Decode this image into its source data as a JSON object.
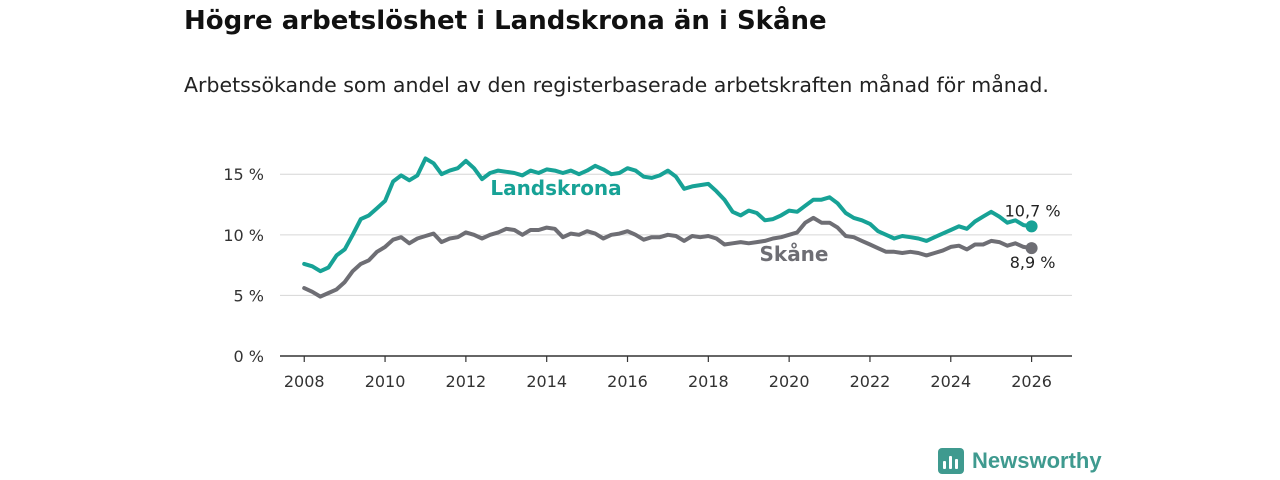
{
  "header": {
    "title": "Högre arbetslöshet i Landskrona än i Skåne",
    "subtitle": "Arbetssökande som andel av den registerbaserade arbetskraften månad för månad."
  },
  "brand": {
    "name": "Newsworthy",
    "color": "#3f9a8f"
  },
  "chart_data": {
    "type": "line",
    "title": "Högre arbetslöshet i Landskrona än i Skåne",
    "subtitle": "Arbetssökande som andel av den registerbaserade arbetskraften månad för månad.",
    "xlabel": "",
    "ylabel": "",
    "xlim": [
      2007.4,
      2027
    ],
    "ylim": [
      0,
      17
    ],
    "x_ticks": [
      2008,
      2010,
      2012,
      2014,
      2016,
      2018,
      2020,
      2022,
      2024,
      2026
    ],
    "x_tick_labels": [
      "2008",
      "2010",
      "2012",
      "2014",
      "2016",
      "2018",
      "2020",
      "2022",
      "2024",
      "2026"
    ],
    "y_ticks": [
      0,
      5,
      10,
      15
    ],
    "y_tick_labels": [
      "0 %",
      "5 %",
      "10 %",
      "15 %"
    ],
    "grid": true,
    "series": [
      {
        "name": "Landskrona",
        "color": "#17a296",
        "end_label": "10,7 %",
        "points": [
          [
            2008.0,
            7.6
          ],
          [
            2008.2,
            7.4
          ],
          [
            2008.4,
            7.0
          ],
          [
            2008.6,
            7.3
          ],
          [
            2008.8,
            8.3
          ],
          [
            2009.0,
            8.8
          ],
          [
            2009.2,
            10.0
          ],
          [
            2009.4,
            11.3
          ],
          [
            2009.6,
            11.6
          ],
          [
            2009.8,
            12.2
          ],
          [
            2010.0,
            12.8
          ],
          [
            2010.2,
            14.4
          ],
          [
            2010.4,
            14.9
          ],
          [
            2010.6,
            14.5
          ],
          [
            2010.8,
            14.9
          ],
          [
            2011.0,
            16.3
          ],
          [
            2011.2,
            15.9
          ],
          [
            2011.4,
            15.0
          ],
          [
            2011.6,
            15.3
          ],
          [
            2011.8,
            15.5
          ],
          [
            2012.0,
            16.1
          ],
          [
            2012.2,
            15.5
          ],
          [
            2012.4,
            14.6
          ],
          [
            2012.6,
            15.1
          ],
          [
            2012.8,
            15.3
          ],
          [
            2013.0,
            15.2
          ],
          [
            2013.2,
            15.1
          ],
          [
            2013.4,
            14.9
          ],
          [
            2013.6,
            15.3
          ],
          [
            2013.8,
            15.1
          ],
          [
            2014.0,
            15.4
          ],
          [
            2014.2,
            15.3
          ],
          [
            2014.4,
            15.1
          ],
          [
            2014.6,
            15.3
          ],
          [
            2014.8,
            15.0
          ],
          [
            2015.0,
            15.3
          ],
          [
            2015.2,
            15.7
          ],
          [
            2015.4,
            15.4
          ],
          [
            2015.6,
            15.0
          ],
          [
            2015.8,
            15.1
          ],
          [
            2016.0,
            15.5
          ],
          [
            2016.2,
            15.3
          ],
          [
            2016.4,
            14.8
          ],
          [
            2016.6,
            14.7
          ],
          [
            2016.8,
            14.9
          ],
          [
            2017.0,
            15.3
          ],
          [
            2017.2,
            14.8
          ],
          [
            2017.4,
            13.8
          ],
          [
            2017.6,
            14.0
          ],
          [
            2017.8,
            14.1
          ],
          [
            2018.0,
            14.2
          ],
          [
            2018.2,
            13.6
          ],
          [
            2018.4,
            12.9
          ],
          [
            2018.6,
            11.9
          ],
          [
            2018.8,
            11.6
          ],
          [
            2019.0,
            12.0
          ],
          [
            2019.2,
            11.8
          ],
          [
            2019.4,
            11.2
          ],
          [
            2019.6,
            11.3
          ],
          [
            2019.8,
            11.6
          ],
          [
            2020.0,
            12.0
          ],
          [
            2020.2,
            11.9
          ],
          [
            2020.4,
            12.4
          ],
          [
            2020.6,
            12.9
          ],
          [
            2020.8,
            12.9
          ],
          [
            2021.0,
            13.1
          ],
          [
            2021.2,
            12.6
          ],
          [
            2021.4,
            11.8
          ],
          [
            2021.6,
            11.4
          ],
          [
            2021.8,
            11.2
          ],
          [
            2022.0,
            10.9
          ],
          [
            2022.2,
            10.3
          ],
          [
            2022.4,
            10.0
          ],
          [
            2022.6,
            9.7
          ],
          [
            2022.8,
            9.9
          ],
          [
            2023.0,
            9.8
          ],
          [
            2023.2,
            9.7
          ],
          [
            2023.4,
            9.5
          ],
          [
            2023.6,
            9.8
          ],
          [
            2023.8,
            10.1
          ],
          [
            2024.0,
            10.4
          ],
          [
            2024.2,
            10.7
          ],
          [
            2024.4,
            10.5
          ],
          [
            2024.6,
            11.1
          ],
          [
            2024.8,
            11.5
          ],
          [
            2025.0,
            11.9
          ],
          [
            2025.2,
            11.5
          ],
          [
            2025.4,
            11.0
          ],
          [
            2025.6,
            11.2
          ],
          [
            2025.8,
            10.8
          ],
          [
            2026.0,
            10.7
          ]
        ]
      },
      {
        "name": "Skåne",
        "color": "#6e6e74",
        "end_label": "8,9 %",
        "points": [
          [
            2008.0,
            5.6
          ],
          [
            2008.2,
            5.3
          ],
          [
            2008.4,
            4.9
          ],
          [
            2008.6,
            5.2
          ],
          [
            2008.8,
            5.5
          ],
          [
            2009.0,
            6.1
          ],
          [
            2009.2,
            7.0
          ],
          [
            2009.4,
            7.6
          ],
          [
            2009.6,
            7.9
          ],
          [
            2009.8,
            8.6
          ],
          [
            2010.0,
            9.0
          ],
          [
            2010.2,
            9.6
          ],
          [
            2010.4,
            9.8
          ],
          [
            2010.6,
            9.3
          ],
          [
            2010.8,
            9.7
          ],
          [
            2011.0,
            9.9
          ],
          [
            2011.2,
            10.1
          ],
          [
            2011.4,
            9.4
          ],
          [
            2011.6,
            9.7
          ],
          [
            2011.8,
            9.8
          ],
          [
            2012.0,
            10.2
          ],
          [
            2012.2,
            10.0
          ],
          [
            2012.4,
            9.7
          ],
          [
            2012.6,
            10.0
          ],
          [
            2012.8,
            10.2
          ],
          [
            2013.0,
            10.5
          ],
          [
            2013.2,
            10.4
          ],
          [
            2013.4,
            10.0
          ],
          [
            2013.6,
            10.4
          ],
          [
            2013.8,
            10.4
          ],
          [
            2014.0,
            10.6
          ],
          [
            2014.2,
            10.5
          ],
          [
            2014.4,
            9.8
          ],
          [
            2014.6,
            10.1
          ],
          [
            2014.8,
            10.0
          ],
          [
            2015.0,
            10.3
          ],
          [
            2015.2,
            10.1
          ],
          [
            2015.4,
            9.7
          ],
          [
            2015.6,
            10.0
          ],
          [
            2015.8,
            10.1
          ],
          [
            2016.0,
            10.3
          ],
          [
            2016.2,
            10.0
          ],
          [
            2016.4,
            9.6
          ],
          [
            2016.6,
            9.8
          ],
          [
            2016.8,
            9.8
          ],
          [
            2017.0,
            10.0
          ],
          [
            2017.2,
            9.9
          ],
          [
            2017.4,
            9.5
          ],
          [
            2017.6,
            9.9
          ],
          [
            2017.8,
            9.8
          ],
          [
            2018.0,
            9.9
          ],
          [
            2018.2,
            9.7
          ],
          [
            2018.4,
            9.2
          ],
          [
            2018.6,
            9.3
          ],
          [
            2018.8,
            9.4
          ],
          [
            2019.0,
            9.3
          ],
          [
            2019.2,
            9.4
          ],
          [
            2019.4,
            9.5
          ],
          [
            2019.6,
            9.7
          ],
          [
            2019.8,
            9.8
          ],
          [
            2020.0,
            10.0
          ],
          [
            2020.2,
            10.2
          ],
          [
            2020.4,
            11.0
          ],
          [
            2020.6,
            11.4
          ],
          [
            2020.8,
            11.0
          ],
          [
            2021.0,
            11.0
          ],
          [
            2021.2,
            10.6
          ],
          [
            2021.4,
            9.9
          ],
          [
            2021.6,
            9.8
          ],
          [
            2021.8,
            9.5
          ],
          [
            2022.0,
            9.2
          ],
          [
            2022.2,
            8.9
          ],
          [
            2022.4,
            8.6
          ],
          [
            2022.6,
            8.6
          ],
          [
            2022.8,
            8.5
          ],
          [
            2023.0,
            8.6
          ],
          [
            2023.2,
            8.5
          ],
          [
            2023.4,
            8.3
          ],
          [
            2023.6,
            8.5
          ],
          [
            2023.8,
            8.7
          ],
          [
            2024.0,
            9.0
          ],
          [
            2024.2,
            9.1
          ],
          [
            2024.4,
            8.8
          ],
          [
            2024.6,
            9.2
          ],
          [
            2024.8,
            9.2
          ],
          [
            2025.0,
            9.5
          ],
          [
            2025.2,
            9.4
          ],
          [
            2025.4,
            9.1
          ],
          [
            2025.6,
            9.3
          ],
          [
            2025.8,
            9.0
          ],
          [
            2026.0,
            8.9
          ]
        ]
      }
    ]
  }
}
